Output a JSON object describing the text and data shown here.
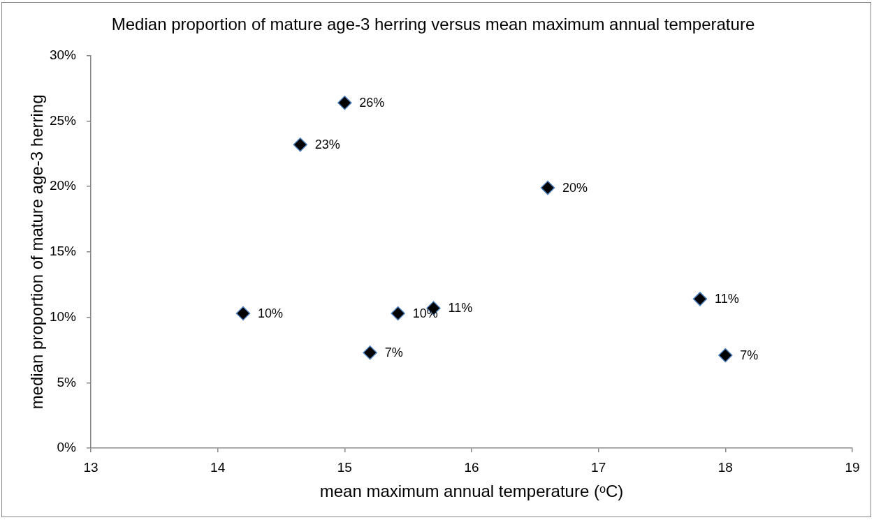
{
  "chart_data": {
    "type": "scatter",
    "title": "Median proportion of mature age-3 herring versus mean maximum annual temperature",
    "xlabel": "mean maximum annual temperature (ᵒC)",
    "ylabel": "median proportion of mature age-3 herring",
    "series": [
      {
        "color": "#000000",
        "x": [
          14.2,
          14.65,
          15.0,
          15.2,
          15.42,
          15.7,
          16.6,
          17.8,
          18.0
        ],
        "values": [
          10.3,
          23.2,
          26.4,
          7.3,
          10.3,
          10.7,
          19.9,
          11.4,
          7.1
        ],
        "value_labels": [
          "10%",
          "23%",
          "26%",
          "7%",
          "10%",
          "11%",
          "20%",
          "11%",
          "7%"
        ]
      }
    ],
    "xlim": [
      13,
      19
    ],
    "xticks": [
      13,
      14,
      15,
      16,
      17,
      18,
      19
    ],
    "ylim": [
      0,
      30
    ],
    "yticks": [
      {
        "value": 0,
        "label": "0%"
      },
      {
        "value": 5,
        "label": "5%"
      },
      {
        "value": 10,
        "label": "10%"
      },
      {
        "value": 15,
        "label": "15%"
      },
      {
        "value": 20,
        "label": "20%"
      },
      {
        "value": 25,
        "label": "25%"
      },
      {
        "value": 30,
        "label": "30%"
      }
    ],
    "marker": "diamond"
  }
}
